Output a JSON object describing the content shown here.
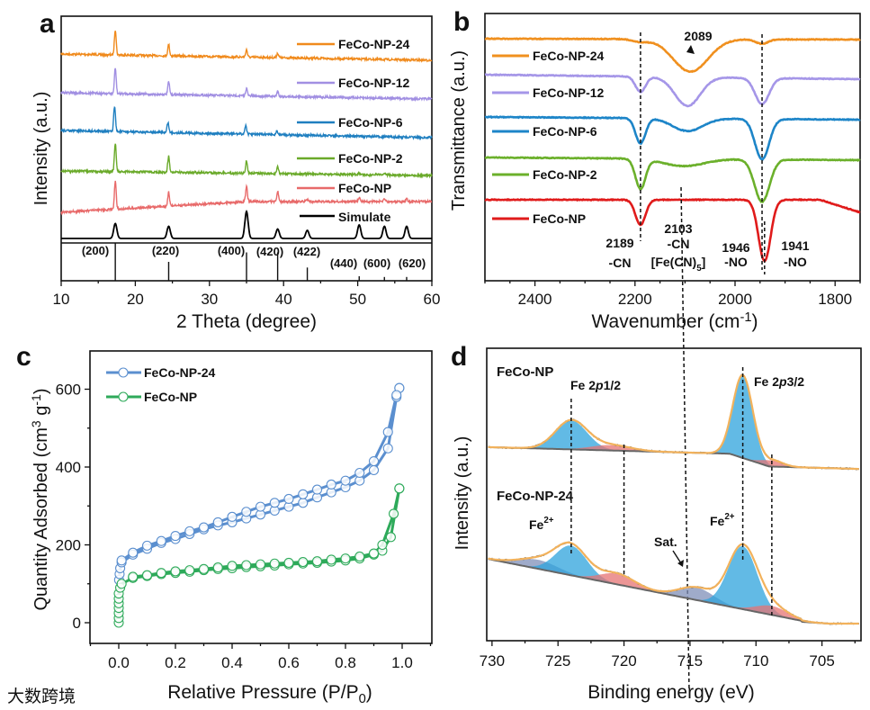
{
  "watermark": "大数跨境",
  "panel_labels": [
    "a",
    "b",
    "c",
    "d"
  ],
  "chart_data": [
    {
      "panel": "a",
      "type": "line",
      "xlabel": "2 Theta (degree)",
      "ylabel": "Intensity (a.u.)",
      "xlim": [
        10,
        60
      ],
      "xticks": [
        "10",
        "20",
        "30",
        "40",
        "50",
        "60"
      ],
      "series": [
        {
          "name": "FeCo-NP-24",
          "color": "#f08a1c",
          "peaks": [
            [
              17.3,
              1.0
            ],
            [
              24.5,
              0.45
            ],
            [
              35.0,
              0.3
            ],
            [
              39.2,
              0.18
            ]
          ]
        },
        {
          "name": "FeCo-NP-12",
          "color": "#a18fe2",
          "peaks": [
            [
              17.3,
              1.0
            ],
            [
              24.5,
              0.5
            ],
            [
              35.0,
              0.3
            ],
            [
              39.2,
              0.2
            ]
          ]
        },
        {
          "name": "FeCo-NP-6",
          "color": "#1f7fc0",
          "peaks": [
            [
              17.2,
              1.0
            ],
            [
              24.4,
              0.4
            ],
            [
              34.9,
              0.35
            ],
            [
              39.1,
              0.15
            ]
          ]
        },
        {
          "name": "FeCo-NP-2",
          "color": "#6aaa2a",
          "peaks": [
            [
              17.3,
              1.1
            ],
            [
              24.5,
              0.65
            ],
            [
              35.0,
              0.5
            ],
            [
              39.2,
              0.28
            ],
            [
              50.2,
              0.06
            ],
            [
              53.6,
              0.05
            ]
          ]
        },
        {
          "name": "FeCo-NP",
          "color": "#e86a6a",
          "peaks": [
            [
              17.3,
              1.1
            ],
            [
              24.5,
              0.55
            ],
            [
              35.0,
              0.6
            ],
            [
              39.2,
              0.4
            ],
            [
              43.2,
              0.1
            ],
            [
              50.2,
              0.15
            ],
            [
              53.6,
              0.12
            ],
            [
              56.6,
              0.12
            ]
          ]
        }
      ],
      "simulated": {
        "name": "Simulate",
        "color": "#000000",
        "peaks": [
          [
            17.3,
            0.55
          ],
          [
            24.5,
            0.45
          ],
          [
            35.0,
            1.0
          ],
          [
            39.2,
            0.35
          ],
          [
            43.2,
            0.3
          ],
          [
            50.2,
            0.5
          ],
          [
            53.6,
            0.45
          ],
          [
            56.6,
            0.45
          ]
        ]
      },
      "reference_reflections": [
        {
          "hkl": "(200)",
          "two_theta": 17.3,
          "intensity": 1.0
        },
        {
          "hkl": "(220)",
          "two_theta": 24.5,
          "intensity": 0.5
        },
        {
          "hkl": "(400)",
          "two_theta": 35.0,
          "intensity": 0.75
        },
        {
          "hkl": "(420)",
          "two_theta": 39.2,
          "intensity": 0.75
        },
        {
          "hkl": "(422)",
          "two_theta": 43.2,
          "intensity": 0.35
        },
        {
          "hkl": "(440)",
          "two_theta": 50.2,
          "intensity": 0.12
        },
        {
          "hkl": "(600)",
          "two_theta": 53.6,
          "intensity": 0.1
        },
        {
          "hkl": "(620)",
          "two_theta": 56.6,
          "intensity": 0.1
        }
      ],
      "legend_placement": "right"
    },
    {
      "panel": "b",
      "type": "line",
      "xlabel_parts": [
        {
          "t": "Wavenumber (cm"
        },
        {
          "t": "-1",
          "s": "sup"
        },
        {
          "t": ")"
        }
      ],
      "ylabel": "Transmittance (a.u.)",
      "xlim": [
        2500,
        1750
      ],
      "xticks": [
        "2400",
        "2200",
        "2000",
        "1800"
      ],
      "series": [
        {
          "name": "FeCo-NP-24",
          "color": "#f0901f",
          "bands": [
            [
              2089,
              3.6,
              35
            ],
            [
              1946,
              0.5,
              12
            ],
            [
              2189,
              0.3,
              15
            ]
          ]
        },
        {
          "name": "FeCo-NP-12",
          "color": "#a596e8",
          "bands": [
            [
              2189,
              1.7,
              10
            ],
            [
              2095,
              3.2,
              25
            ],
            [
              1946,
              2.9,
              14
            ]
          ]
        },
        {
          "name": "FeCo-NP-6",
          "color": "#1d85c8",
          "bands": [
            [
              2189,
              2.8,
              10
            ],
            [
              2095,
              1.4,
              30
            ],
            [
              1946,
              4.5,
              14
            ]
          ]
        },
        {
          "name": "FeCo-NP-2",
          "color": "#6bb02b",
          "bands": [
            [
              2189,
              3.3,
              10
            ],
            [
              2103,
              0.8,
              40
            ],
            [
              1946,
              4.7,
              15
            ]
          ]
        },
        {
          "name": "FeCo-NP",
          "color": "#e01b1b",
          "bands": [
            [
              2189,
              2.8,
              10
            ],
            [
              1941,
              6.8,
              12
            ]
          ]
        }
      ],
      "annotations": {
        "shift": "2089",
        "p2189": "2189",
        "p2189_assign": "-CN",
        "p2103": "2103",
        "p2103_assign": "-CN",
        "p2103_species": [
          {
            "t": "[Fe(CN)"
          },
          {
            "t": "5",
            "s": "sub"
          },
          {
            "t": "]"
          }
        ],
        "p1946": "1946",
        "p1946_assign": "-NO",
        "p1941": "1941",
        "p1941_assign": "-NO"
      },
      "annotation_color": "#e02020",
      "legend_placement": "left"
    },
    {
      "panel": "c",
      "type": "scatter",
      "xlabel_parts": [
        {
          "t": "Relative Pressure (P/P"
        },
        {
          "t": "0",
          "s": "sub"
        },
        {
          "t": ")"
        }
      ],
      "ylabel_parts": [
        {
          "t": "Quantity Adsorbed (cm"
        },
        {
          "t": "3",
          "s": "sup"
        },
        {
          "t": " g"
        },
        {
          "t": "-1",
          "s": "sup"
        },
        {
          "t": ")"
        }
      ],
      "xlim": [
        -0.1,
        1.1
      ],
      "ylim": [
        -53,
        700
      ],
      "xticks": [
        "0.0",
        "0.2",
        "0.4",
        "0.6",
        "0.8",
        "1.0"
      ],
      "yticks": [
        "0",
        "200",
        "400",
        "600"
      ],
      "series": [
        {
          "name": "FeCo-NP-24",
          "color": "#5b8fcf",
          "adsorption": [
            [
              0.001,
              110
            ],
            [
              0.003,
              125
            ],
            [
              0.005,
              140
            ],
            [
              0.01,
              155
            ],
            [
              0.05,
              175
            ],
            [
              0.1,
              190
            ],
            [
              0.15,
              205
            ],
            [
              0.2,
              215
            ],
            [
              0.25,
              228
            ],
            [
              0.3,
              240
            ],
            [
              0.35,
              250
            ],
            [
              0.4,
              258
            ],
            [
              0.45,
              268
            ],
            [
              0.5,
              278
            ],
            [
              0.55,
              288
            ],
            [
              0.6,
              298
            ],
            [
              0.65,
              308
            ],
            [
              0.7,
              322
            ],
            [
              0.75,
              335
            ],
            [
              0.8,
              348
            ],
            [
              0.85,
              365
            ],
            [
              0.9,
              392
            ],
            [
              0.95,
              448
            ],
            [
              0.98,
              580
            ],
            [
              0.99,
              603
            ]
          ],
          "desorption": [
            [
              0.99,
              603
            ],
            [
              0.98,
              585
            ],
            [
              0.95,
              490
            ],
            [
              0.9,
              415
            ],
            [
              0.85,
              385
            ],
            [
              0.8,
              365
            ],
            [
              0.75,
              355
            ],
            [
              0.7,
              342
            ],
            [
              0.65,
              330
            ],
            [
              0.6,
              318
            ],
            [
              0.55,
              308
            ],
            [
              0.5,
              298
            ],
            [
              0.45,
              285
            ],
            [
              0.4,
              272
            ],
            [
              0.35,
              258
            ],
            [
              0.3,
              245
            ],
            [
              0.25,
              235
            ],
            [
              0.2,
              223
            ],
            [
              0.15,
              210
            ],
            [
              0.1,
              198
            ],
            [
              0.05,
              180
            ],
            [
              0.01,
              160
            ]
          ]
        },
        {
          "name": "FeCo-NP",
          "color": "#2eaa5a",
          "adsorption": [
            [
              0.0,
              0
            ],
            [
              0.0,
              12
            ],
            [
              0.0,
              25
            ],
            [
              0.0,
              38
            ],
            [
              0.0,
              50
            ],
            [
              0.0,
              62
            ],
            [
              0.0,
              75
            ],
            [
              0.005,
              90
            ],
            [
              0.01,
              100
            ],
            [
              0.05,
              115
            ],
            [
              0.1,
              120
            ],
            [
              0.15,
              125
            ],
            [
              0.2,
              128
            ],
            [
              0.25,
              131
            ],
            [
              0.3,
              135
            ],
            [
              0.35,
              138
            ],
            [
              0.4,
              140
            ],
            [
              0.45,
              143
            ],
            [
              0.5,
              145
            ],
            [
              0.55,
              147
            ],
            [
              0.6,
              150
            ],
            [
              0.65,
              152
            ],
            [
              0.7,
              154
            ],
            [
              0.75,
              157
            ],
            [
              0.8,
              160
            ],
            [
              0.85,
              165
            ],
            [
              0.9,
              175
            ],
            [
              0.93,
              185
            ],
            [
              0.96,
              220
            ],
            [
              0.99,
              345
            ]
          ],
          "desorption": [
            [
              0.99,
              345
            ],
            [
              0.97,
              280
            ],
            [
              0.93,
              200
            ],
            [
              0.9,
              178
            ],
            [
              0.85,
              170
            ],
            [
              0.8,
              165
            ],
            [
              0.75,
              162
            ],
            [
              0.7,
              158
            ],
            [
              0.65,
              156
            ],
            [
              0.6,
              154
            ],
            [
              0.55,
              152
            ],
            [
              0.5,
              150
            ],
            [
              0.45,
              148
            ],
            [
              0.4,
              146
            ],
            [
              0.35,
              142
            ],
            [
              0.3,
              138
            ],
            [
              0.25,
              135
            ],
            [
              0.2,
              132
            ],
            [
              0.15,
              128
            ],
            [
              0.1,
              122
            ],
            [
              0.05,
              118
            ]
          ]
        }
      ],
      "legend_placement": "top-left"
    },
    {
      "panel": "d",
      "type": "area",
      "xlabel": "Binding energy (eV)",
      "ylabel": "Intensity (a.u.)",
      "xlim": [
        730.4,
        702
      ],
      "xticks": [
        "730",
        "725",
        "720",
        "715",
        "710",
        "705"
      ],
      "spectra": [
        {
          "name": "FeCo-NP",
          "components": [
            {
              "center": 724.0,
              "height": 32,
              "sigma": 1.2,
              "type": "Fe2+"
            },
            {
              "center": 721.0,
              "height": 6,
              "sigma": 1.5,
              "type": "other"
            },
            {
              "center": 711.0,
              "height": 92,
              "sigma": 0.75,
              "type": "Fe2+"
            },
            {
              "center": 708.8,
              "height": 7,
              "sigma": 0.8,
              "type": "other"
            }
          ]
        },
        {
          "name": "FeCo-NP-24",
          "components": [
            {
              "center": 726.5,
              "height": 10,
              "sigma": 1.5,
              "type": "sat"
            },
            {
              "center": 724.0,
              "height": 33,
              "sigma": 1.2,
              "type": "Fe2+"
            },
            {
              "center": 720.5,
              "height": 12,
              "sigma": 1.3,
              "type": "other"
            },
            {
              "center": 714.5,
              "height": 14,
              "sigma": 1.3,
              "type": "sat"
            },
            {
              "center": 711.0,
              "height": 70,
              "sigma": 1.1,
              "type": "Fe2+"
            },
            {
              "center": 708.8,
              "height": 10,
              "sigma": 1.2,
              "type": "other"
            }
          ]
        }
      ],
      "component_colors": {
        "Fe2+": "#2ea3dc",
        "other": "#e57373",
        "sat": "#7f8fb8"
      },
      "envelope_color": "#f2b25c",
      "annotations": {
        "fe2p12": [
          {
            "t": "Fe 2"
          },
          {
            "t": "p",
            "s": "i"
          },
          {
            "t": "1/2"
          }
        ],
        "fe2p32": [
          {
            "t": "Fe 2"
          },
          {
            "t": "p",
            "s": "i"
          },
          {
            "t": "3/2"
          }
        ],
        "fe2plus_a": [
          {
            "t": "Fe"
          },
          {
            "t": "2+",
            "s": "sup"
          }
        ],
        "fe2plus_b": [
          {
            "t": "Fe"
          },
          {
            "t": "2+",
            "s": "sup"
          }
        ],
        "sat": "Sat."
      }
    }
  ]
}
